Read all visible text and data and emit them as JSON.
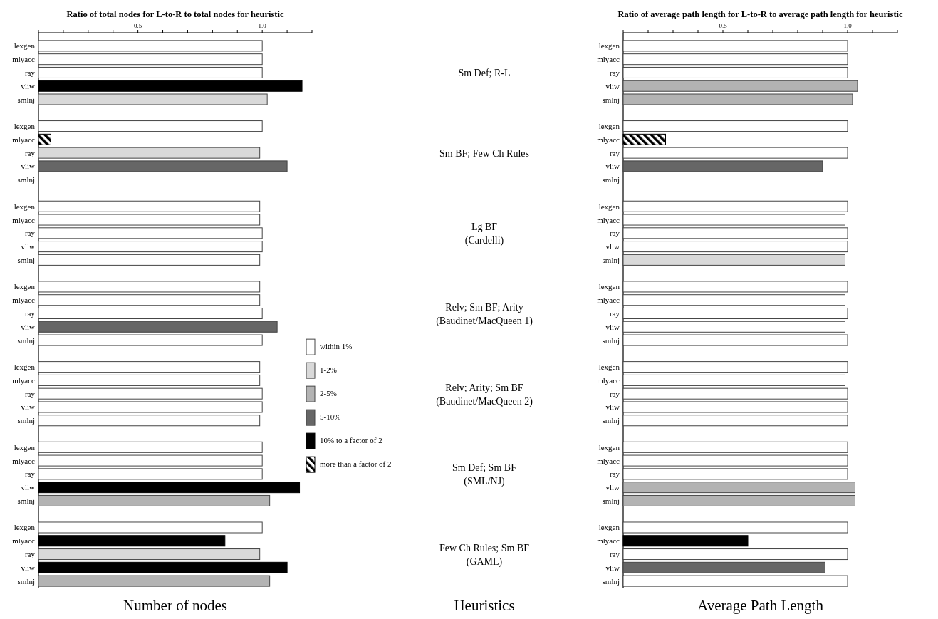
{
  "chart_data": [
    {
      "type": "bar",
      "orientation": "horizontal",
      "title": "Ratio of total nodes for L-to-R to total nodes for heuristic",
      "xlabel": "Number of nodes",
      "categories": [
        "lexgen",
        "mlyacc",
        "ray",
        "vliw",
        "smlnj",
        null,
        "lexgen",
        "mlyacc",
        "ray",
        "vliw",
        "smlnj",
        null,
        "lexgen",
        "mlyacc",
        "ray",
        "vliw",
        "smlnj",
        null,
        "lexgen",
        "mlyacc",
        "ray",
        "vliw",
        "smlnj",
        null,
        "lexgen",
        "mlyacc",
        "ray",
        "vliw",
        "smlnj",
        null,
        "lexgen",
        "mlyacc",
        "ray",
        "vliw",
        "smlnj",
        null,
        "lexgen",
        "mlyacc",
        "ray",
        "vliw",
        "smlnj"
      ],
      "xlim": [
        0.1,
        1.2
      ],
      "xticks": [
        {
          "value": 0.1,
          "label": null
        },
        {
          "value": 0.2,
          "label": null
        },
        {
          "value": 0.3,
          "label": null
        },
        {
          "value": 0.4,
          "label": null
        },
        0.5,
        {
          "value": 0.6,
          "label": null
        },
        {
          "value": 0.7,
          "label": null
        },
        {
          "value": 0.8,
          "label": null
        },
        {
          "value": 0.9,
          "label": null
        },
        {
          "value": 1,
          "label": "1.0"
        },
        {
          "value": 1.1,
          "label": null
        },
        {
          "value": 1.2,
          "label": null
        }
      ],
      "legend": "right",
      "series": [
        {
          "name": "within 1%",
          "color": "#ffffff",
          "values": [
            1.0,
            1.0,
            1.0,
            null,
            null,
            null,
            1.0,
            null,
            null,
            null,
            null,
            null,
            0.99,
            0.99,
            1.0,
            1.0,
            0.99,
            null,
            0.99,
            0.99,
            1.0,
            null,
            1.0,
            null,
            0.99,
            0.99,
            1.0,
            1.0,
            0.99,
            null,
            1.0,
            1.0,
            1.0,
            null,
            null,
            null,
            1.0,
            null,
            null,
            null,
            null
          ]
        },
        {
          "name": "1-2%",
          "color": "#d9d9d9",
          "values": [
            null,
            null,
            null,
            null,
            1.02,
            null,
            null,
            null,
            0.99,
            null,
            null,
            null,
            null,
            null,
            null,
            null,
            null,
            null,
            null,
            null,
            null,
            null,
            null,
            null,
            null,
            null,
            null,
            null,
            null,
            null,
            null,
            null,
            null,
            null,
            null,
            null,
            null,
            null,
            0.99,
            null,
            null
          ]
        },
        {
          "name": "2-5%",
          "color": "#b3b3b3",
          "values": [
            null,
            null,
            null,
            null,
            null,
            null,
            null,
            null,
            null,
            null,
            null,
            null,
            null,
            null,
            null,
            null,
            null,
            null,
            null,
            null,
            null,
            null,
            null,
            null,
            null,
            null,
            null,
            null,
            null,
            null,
            null,
            null,
            null,
            null,
            1.03,
            null,
            null,
            null,
            null,
            null,
            1.03
          ]
        },
        {
          "name": "5-10%",
          "color": "#666666",
          "values": [
            null,
            null,
            null,
            null,
            null,
            null,
            null,
            null,
            null,
            1.1,
            null,
            null,
            null,
            null,
            null,
            null,
            null,
            null,
            null,
            null,
            null,
            1.06,
            null,
            null,
            null,
            null,
            null,
            null,
            null,
            null,
            null,
            null,
            null,
            null,
            null,
            null,
            null,
            null,
            null,
            null,
            null
          ]
        },
        {
          "name": "10% to a factor of 2",
          "color": "#000000",
          "values": [
            null,
            null,
            null,
            1.16,
            null,
            null,
            null,
            null,
            null,
            null,
            null,
            null,
            null,
            null,
            null,
            null,
            null,
            null,
            null,
            null,
            null,
            null,
            null,
            null,
            null,
            null,
            null,
            null,
            null,
            null,
            null,
            null,
            null,
            1.15,
            null,
            null,
            null,
            0.85,
            null,
            1.1,
            null
          ]
        },
        {
          "name": "more than a factor of 2",
          "color": "#000000",
          "values": [
            null,
            null,
            null,
            null,
            null,
            null,
            null,
            0.15,
            null,
            null,
            null,
            null,
            null,
            null,
            null,
            null,
            null,
            null,
            null,
            null,
            null,
            null,
            null,
            null,
            null,
            null,
            null,
            null,
            null,
            null,
            null,
            null,
            null,
            null,
            null,
            null,
            null,
            null,
            null,
            null,
            null
          ]
        }
      ],
      "annotations": [
        "Heuristics",
        "Sm Def; R-L",
        "Sm BF; Few Ch Rules",
        "Lg BF\n(Cardelli)",
        "Relv; Sm BF; Arity\n(Baudinet/MacQueen 1)",
        "Relv; Arity; Sm BF\n(Baudinet/MacQueen 2)",
        "Sm Def; Sm BF\n(SML/NJ)",
        "Few Ch Rules; Sm BF\n(GAML)"
      ]
    },
    {
      "type": "bar",
      "orientation": "horizontal",
      "title": "Ratio of average path length for L-to-R to average path length for heuristic",
      "xlabel": "Average Path Length",
      "categories": [
        "lexgen",
        "mlyacc",
        "ray",
        "vliw",
        "smlnj",
        null,
        "lexgen",
        "mlyacc",
        "ray",
        "vliw",
        "smlnj",
        null,
        "lexgen",
        "mlyacc",
        "ray",
        "vliw",
        "smlnj",
        null,
        "lexgen",
        "mlyacc",
        "ray",
        "vliw",
        "smlnj",
        null,
        "lexgen",
        "mlyacc",
        "ray",
        "vliw",
        "smlnj",
        null,
        "lexgen",
        "mlyacc",
        "ray",
        "vliw",
        "smlnj",
        null,
        "lexgen",
        "mlyacc",
        "ray",
        "vliw",
        "smlnj"
      ],
      "xlim": [
        0.1,
        1.2
      ],
      "xticks": [
        {
          "value": 0.1,
          "label": null
        },
        {
          "value": 0.2,
          "label": null
        },
        {
          "value": 0.3,
          "label": null
        },
        {
          "value": 0.4,
          "label": null
        },
        0.5,
        {
          "value": 0.6,
          "label": null
        },
        {
          "value": 0.7,
          "label": null
        },
        {
          "value": 0.8,
          "label": null
        },
        {
          "value": 0.9,
          "label": null
        },
        {
          "value": 1,
          "label": "1.0"
        },
        {
          "value": 1.1,
          "label": null
        },
        {
          "value": 1.2,
          "label": null
        }
      ],
      "series": [
        {
          "color": "#ffffff",
          "values": [
            1.0,
            1.0,
            1.0,
            null,
            null,
            null,
            1.0,
            null,
            1.0,
            null,
            null,
            null,
            1.0,
            0.99,
            1.0,
            1.0,
            null,
            null,
            1.0,
            0.99,
            1.0,
            0.99,
            1.0,
            null,
            1.0,
            0.99,
            1.0,
            1.0,
            1.0,
            null,
            1.0,
            1.0,
            1.0,
            null,
            null,
            null,
            1.0,
            null,
            1.0,
            null,
            1.0
          ]
        },
        {
          "color": "#d9d9d9",
          "values": [
            null,
            null,
            null,
            null,
            null,
            null,
            null,
            null,
            null,
            null,
            null,
            null,
            null,
            null,
            null,
            null,
            0.99,
            null,
            null,
            null,
            null,
            null,
            null,
            null,
            null,
            null,
            null,
            null,
            null,
            null,
            null,
            null,
            null,
            null,
            null,
            null,
            null,
            null,
            null,
            null,
            null
          ]
        },
        {
          "color": "#b3b3b3",
          "values": [
            null,
            null,
            null,
            1.04,
            1.02,
            null,
            null,
            null,
            null,
            null,
            null,
            null,
            null,
            null,
            null,
            null,
            null,
            null,
            null,
            null,
            null,
            null,
            null,
            null,
            null,
            null,
            null,
            null,
            null,
            null,
            null,
            null,
            null,
            1.03,
            1.03,
            null,
            null,
            null,
            null,
            null,
            null
          ]
        },
        {
          "color": "#666666",
          "values": [
            null,
            null,
            null,
            null,
            null,
            null,
            null,
            null,
            null,
            0.9,
            null,
            null,
            null,
            null,
            null,
            null,
            null,
            null,
            null,
            null,
            null,
            null,
            null,
            null,
            null,
            null,
            null,
            null,
            null,
            null,
            null,
            null,
            null,
            null,
            null,
            null,
            null,
            null,
            null,
            0.91,
            null
          ]
        },
        {
          "color": "#000000",
          "values": [
            null,
            null,
            null,
            null,
            null,
            null,
            null,
            null,
            null,
            null,
            null,
            null,
            null,
            null,
            null,
            null,
            null,
            null,
            null,
            null,
            null,
            null,
            null,
            null,
            null,
            null,
            null,
            null,
            null,
            null,
            null,
            null,
            null,
            null,
            null,
            null,
            null,
            0.6,
            null,
            null,
            null
          ]
        },
        {
          "color": "#000000",
          "values": [
            null,
            null,
            null,
            null,
            null,
            null,
            null,
            0.27,
            null,
            null,
            null,
            null,
            null,
            null,
            null,
            null,
            null,
            null,
            null,
            null,
            null,
            null,
            null,
            null,
            null,
            null,
            null,
            null,
            null,
            null,
            null,
            null,
            null,
            null,
            null,
            null,
            null,
            null,
            null,
            null,
            null
          ]
        }
      ]
    }
  ]
}
